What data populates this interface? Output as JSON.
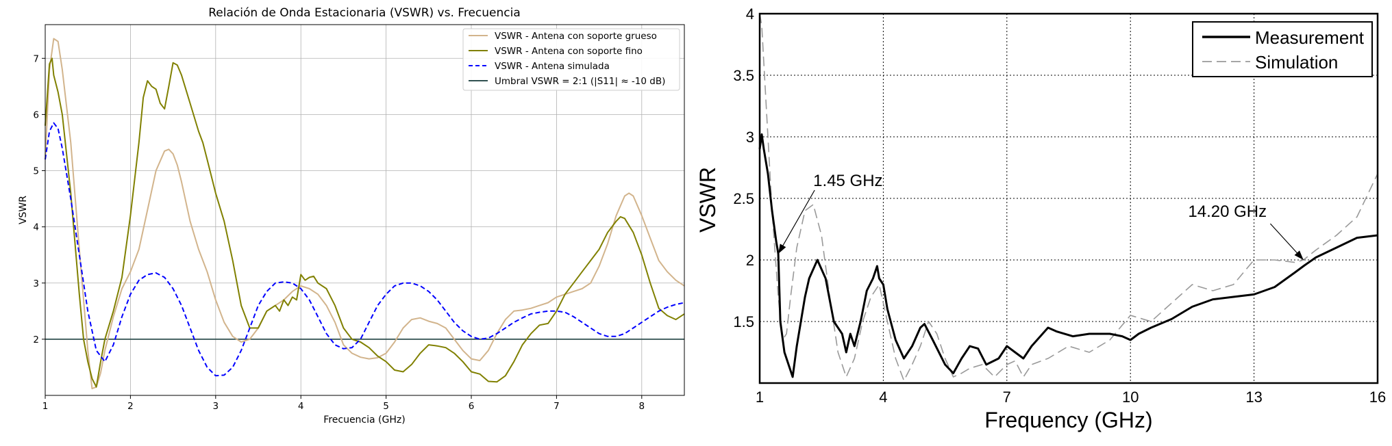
{
  "chart_data": [
    {
      "type": "line",
      "title": "Relación de Onda Estacionaria (VSWR) vs. Frecuencia",
      "xlabel": "Frecuencia (GHz)",
      "ylabel": "VSWR",
      "xlim": [
        1,
        8.5
      ],
      "ylim": [
        1.0,
        7.6
      ],
      "xticks": [
        1,
        2,
        3,
        4,
        5,
        6,
        7,
        8
      ],
      "yticks": [
        2,
        3,
        4,
        5,
        6,
        7
      ],
      "grid": true,
      "legend_position": "top-right",
      "colors": {
        "thick": "#d2b48c",
        "thin": "#808000",
        "sim": "#0000ff",
        "threshold": "#2f4f4f"
      },
      "threshold": {
        "name": "Umbral VSWR = 2:1 (|S11| ≈ -10 dB)",
        "value": 2.0
      },
      "series": [
        {
          "name": "VSWR - Antena con soporte grueso",
          "style": "solid",
          "x": [
            1.0,
            1.05,
            1.1,
            1.15,
            1.2,
            1.3,
            1.4,
            1.5,
            1.55,
            1.6,
            1.65,
            1.7,
            1.8,
            1.9,
            2.0,
            2.1,
            2.2,
            2.3,
            2.4,
            2.45,
            2.5,
            2.55,
            2.6,
            2.7,
            2.8,
            2.9,
            3.0,
            3.1,
            3.2,
            3.3,
            3.4,
            3.5,
            3.6,
            3.7,
            3.8,
            3.9,
            4.0,
            4.1,
            4.2,
            4.3,
            4.4,
            4.5,
            4.6,
            4.7,
            4.8,
            4.9,
            5.0,
            5.1,
            5.2,
            5.3,
            5.4,
            5.5,
            5.6,
            5.7,
            5.8,
            5.9,
            6.0,
            6.1,
            6.2,
            6.3,
            6.4,
            6.5,
            6.6,
            6.7,
            6.8,
            6.9,
            7.0,
            7.1,
            7.2,
            7.3,
            7.4,
            7.5,
            7.6,
            7.7,
            7.8,
            7.85,
            7.9,
            8.0,
            8.1,
            8.2,
            8.3,
            8.4,
            8.5
          ],
          "values": [
            5.2,
            6.8,
            7.35,
            7.3,
            6.8,
            5.5,
            3.6,
            1.8,
            1.12,
            1.15,
            1.4,
            1.8,
            2.4,
            2.9,
            3.2,
            3.6,
            4.3,
            5.0,
            5.35,
            5.38,
            5.3,
            5.1,
            4.8,
            4.1,
            3.6,
            3.2,
            2.7,
            2.3,
            2.05,
            1.95,
            2.0,
            2.2,
            2.5,
            2.6,
            2.7,
            2.85,
            2.95,
            2.9,
            2.8,
            2.6,
            2.3,
            1.9,
            1.75,
            1.68,
            1.65,
            1.67,
            1.75,
            1.95,
            2.2,
            2.35,
            2.38,
            2.32,
            2.28,
            2.2,
            2.0,
            1.8,
            1.65,
            1.62,
            1.8,
            2.1,
            2.35,
            2.5,
            2.52,
            2.55,
            2.6,
            2.65,
            2.75,
            2.8,
            2.85,
            2.9,
            3.0,
            3.3,
            3.7,
            4.2,
            4.55,
            4.6,
            4.55,
            4.2,
            3.8,
            3.4,
            3.2,
            3.05,
            2.95
          ]
        },
        {
          "name": "VSWR - Antena con soporte fino",
          "style": "solid",
          "x": [
            1.0,
            1.05,
            1.08,
            1.1,
            1.15,
            1.2,
            1.3,
            1.4,
            1.45,
            1.5,
            1.55,
            1.6,
            1.65,
            1.7,
            1.8,
            1.9,
            2.0,
            2.1,
            2.15,
            2.2,
            2.25,
            2.3,
            2.35,
            2.4,
            2.45,
            2.5,
            2.55,
            2.6,
            2.7,
            2.8,
            2.85,
            2.9,
            3.0,
            3.1,
            3.2,
            3.3,
            3.4,
            3.5,
            3.6,
            3.7,
            3.75,
            3.8,
            3.85,
            3.9,
            3.95,
            4.0,
            4.05,
            4.1,
            4.15,
            4.2,
            4.3,
            4.4,
            4.5,
            4.6,
            4.7,
            4.8,
            4.9,
            5.0,
            5.1,
            5.2,
            5.3,
            5.4,
            5.5,
            5.6,
            5.7,
            5.8,
            5.9,
            6.0,
            6.1,
            6.2,
            6.3,
            6.4,
            6.5,
            6.6,
            6.7,
            6.8,
            6.9,
            7.0,
            7.1,
            7.2,
            7.3,
            7.4,
            7.5,
            7.6,
            7.7,
            7.75,
            7.8,
            7.9,
            8.0,
            8.1,
            8.2,
            8.3,
            8.4,
            8.5
          ],
          "values": [
            5.8,
            6.9,
            7.0,
            6.7,
            6.4,
            6.0,
            4.6,
            2.8,
            2.0,
            1.6,
            1.3,
            1.15,
            1.6,
            2.0,
            2.5,
            3.1,
            4.2,
            5.5,
            6.3,
            6.6,
            6.5,
            6.45,
            6.2,
            6.1,
            6.5,
            6.92,
            6.88,
            6.7,
            6.2,
            5.7,
            5.5,
            5.2,
            4.6,
            4.1,
            3.4,
            2.6,
            2.2,
            2.2,
            2.5,
            2.6,
            2.5,
            2.7,
            2.6,
            2.75,
            2.7,
            3.15,
            3.05,
            3.1,
            3.12,
            3.0,
            2.9,
            2.6,
            2.2,
            2.0,
            1.95,
            1.85,
            1.7,
            1.6,
            1.45,
            1.42,
            1.55,
            1.75,
            1.9,
            1.88,
            1.85,
            1.75,
            1.6,
            1.42,
            1.38,
            1.25,
            1.24,
            1.35,
            1.6,
            1.9,
            2.1,
            2.25,
            2.28,
            2.5,
            2.8,
            3.0,
            3.2,
            3.4,
            3.6,
            3.9,
            4.1,
            4.18,
            4.15,
            3.9,
            3.5,
            3.0,
            2.55,
            2.42,
            2.35,
            2.45
          ]
        },
        {
          "name": "VSWR - Antena simulada",
          "style": "dashed",
          "x": [
            1.0,
            1.05,
            1.1,
            1.15,
            1.2,
            1.3,
            1.4,
            1.5,
            1.6,
            1.7,
            1.8,
            1.9,
            2.0,
            2.1,
            2.2,
            2.3,
            2.4,
            2.5,
            2.6,
            2.7,
            2.8,
            2.9,
            3.0,
            3.1,
            3.2,
            3.3,
            3.4,
            3.5,
            3.6,
            3.7,
            3.8,
            3.9,
            4.0,
            4.1,
            4.2,
            4.3,
            4.4,
            4.5,
            4.6,
            4.7,
            4.8,
            4.9,
            5.0,
            5.1,
            5.2,
            5.3,
            5.4,
            5.5,
            5.6,
            5.7,
            5.8,
            5.9,
            6.0,
            6.1,
            6.2,
            6.3,
            6.4,
            6.5,
            6.6,
            6.7,
            6.8,
            6.9,
            7.0,
            7.1,
            7.2,
            7.3,
            7.4,
            7.5,
            7.6,
            7.7,
            7.8,
            7.9,
            8.0,
            8.1,
            8.2,
            8.3,
            8.4,
            8.5
          ],
          "values": [
            5.2,
            5.7,
            5.85,
            5.75,
            5.4,
            4.5,
            3.5,
            2.5,
            1.8,
            1.6,
            1.9,
            2.4,
            2.8,
            3.05,
            3.15,
            3.18,
            3.1,
            2.9,
            2.6,
            2.2,
            1.8,
            1.5,
            1.35,
            1.36,
            1.5,
            1.8,
            2.2,
            2.6,
            2.85,
            3.0,
            3.02,
            3.0,
            2.9,
            2.7,
            2.4,
            2.1,
            1.9,
            1.83,
            1.85,
            2.0,
            2.3,
            2.6,
            2.8,
            2.95,
            3.0,
            3.0,
            2.95,
            2.85,
            2.7,
            2.5,
            2.3,
            2.15,
            2.05,
            2.0,
            2.02,
            2.1,
            2.2,
            2.3,
            2.38,
            2.45,
            2.48,
            2.5,
            2.5,
            2.48,
            2.4,
            2.3,
            2.2,
            2.1,
            2.05,
            2.05,
            2.1,
            2.2,
            2.3,
            2.4,
            2.5,
            2.57,
            2.62,
            2.65
          ]
        }
      ]
    },
    {
      "type": "line",
      "title": "",
      "xlabel": "Frequency (GHz)",
      "ylabel": "VSWR",
      "xlim": [
        1,
        16
      ],
      "ylim": [
        1,
        4
      ],
      "xticks": [
        1,
        4,
        7,
        10,
        13,
        16
      ],
      "yticks": [
        1.5,
        2,
        2.5,
        3,
        3.5,
        4
      ],
      "ytick_labels": [
        "1.5",
        "2",
        "2.5",
        "3",
        "3.5",
        "4"
      ],
      "grid": true,
      "legend_position": "top-right",
      "colors": {
        "measurement": "#000000",
        "simulation": "#999999"
      },
      "annotations": [
        {
          "text": "1.45 GHz",
          "x": 1.45,
          "y": 2.05,
          "text_x": 2.3,
          "text_y": 2.6
        },
        {
          "text": "14.20 GHz",
          "x": 14.2,
          "y": 2.0,
          "text_x": 11.4,
          "text_y": 2.35
        }
      ],
      "series": [
        {
          "name": "Measurement",
          "style": "solid",
          "x": [
            1.0,
            1.05,
            1.1,
            1.2,
            1.3,
            1.4,
            1.45,
            1.5,
            1.6,
            1.8,
            1.9,
            2.0,
            2.1,
            2.2,
            2.4,
            2.6,
            2.8,
            3.0,
            3.1,
            3.2,
            3.3,
            3.45,
            3.6,
            3.75,
            3.85,
            3.9,
            4.0,
            4.1,
            4.3,
            4.5,
            4.7,
            4.9,
            5.0,
            5.2,
            5.5,
            5.7,
            5.9,
            6.1,
            6.3,
            6.5,
            6.8,
            7.0,
            7.2,
            7.4,
            7.6,
            8.0,
            8.2,
            8.6,
            9.0,
            9.5,
            9.8,
            10.0,
            10.2,
            10.5,
            11.0,
            11.5,
            12.0,
            12.5,
            13.0,
            13.5,
            14.0,
            14.2,
            14.5,
            15.0,
            15.5,
            16.0
          ],
          "values": [
            2.9,
            3.02,
            2.9,
            2.7,
            2.4,
            2.15,
            2.05,
            1.5,
            1.25,
            1.05,
            1.3,
            1.5,
            1.7,
            1.85,
            2.0,
            1.85,
            1.5,
            1.4,
            1.25,
            1.4,
            1.3,
            1.5,
            1.75,
            1.85,
            1.95,
            1.85,
            1.8,
            1.6,
            1.35,
            1.2,
            1.3,
            1.45,
            1.48,
            1.35,
            1.15,
            1.08,
            1.2,
            1.3,
            1.28,
            1.15,
            1.2,
            1.3,
            1.25,
            1.2,
            1.3,
            1.45,
            1.42,
            1.38,
            1.4,
            1.4,
            1.38,
            1.35,
            1.4,
            1.45,
            1.52,
            1.62,
            1.68,
            1.7,
            1.72,
            1.78,
            1.9,
            1.95,
            2.02,
            2.1,
            2.18,
            2.2
          ]
        },
        {
          "name": "Simulation",
          "style": "dashed",
          "x": [
            1.0,
            1.05,
            1.1,
            1.2,
            1.3,
            1.45,
            1.55,
            1.65,
            1.75,
            1.9,
            2.1,
            2.3,
            2.5,
            2.7,
            2.9,
            3.1,
            3.3,
            3.5,
            3.7,
            3.9,
            4.1,
            4.3,
            4.5,
            4.7,
            4.9,
            5.1,
            5.3,
            5.5,
            5.7,
            5.9,
            6.1,
            6.4,
            6.7,
            7.0,
            7.2,
            7.4,
            7.6,
            8.0,
            8.5,
            9.0,
            9.5,
            10.0,
            10.5,
            11.0,
            11.5,
            12.0,
            12.5,
            13.0,
            13.5,
            14.0,
            14.2,
            14.5,
            15.0,
            15.5,
            16.0
          ],
          "values": [
            4.0,
            3.9,
            3.6,
            3.0,
            2.4,
            1.7,
            1.35,
            1.4,
            1.7,
            2.1,
            2.4,
            2.45,
            2.2,
            1.7,
            1.25,
            1.05,
            1.2,
            1.5,
            1.7,
            1.8,
            1.5,
            1.2,
            1.02,
            1.15,
            1.3,
            1.5,
            1.4,
            1.2,
            1.05,
            1.08,
            1.12,
            1.15,
            1.05,
            1.15,
            1.18,
            1.05,
            1.15,
            1.2,
            1.3,
            1.25,
            1.35,
            1.55,
            1.5,
            1.65,
            1.8,
            1.75,
            1.8,
            2.0,
            2.0,
            1.98,
            2.0,
            2.08,
            2.2,
            2.35,
            2.7
          ]
        }
      ]
    }
  ]
}
